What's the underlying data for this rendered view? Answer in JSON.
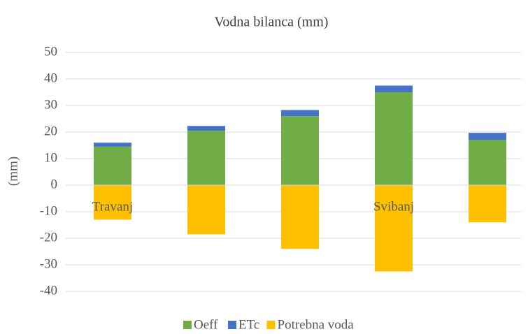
{
  "chart_data": {
    "type": "stacked_bar",
    "title": "Vodna bilanca (mm)",
    "ylabel": "(mm)",
    "categories": [
      "Travanj",
      null,
      null,
      "Svibanj",
      null
    ],
    "series": [
      {
        "name": "Oeff",
        "color": "#70ad47",
        "values": [
          14.5,
          20.5,
          26,
          35,
          17
        ]
      },
      {
        "name": "ETc",
        "color": "#4472c4",
        "values": [
          1.5,
          1.8,
          2.3,
          2.5,
          2.7
        ]
      },
      {
        "name": "Potrebna voda",
        "color": "#ffc000",
        "values": [
          -13,
          -18.5,
          -24,
          -32.5,
          -14
        ]
      }
    ],
    "ylim": [
      -40,
      50
    ],
    "yticks": [
      -40,
      -30,
      -20,
      -10,
      0,
      10,
      20,
      30,
      40,
      50
    ],
    "grid": true,
    "legend": "bottom"
  }
}
